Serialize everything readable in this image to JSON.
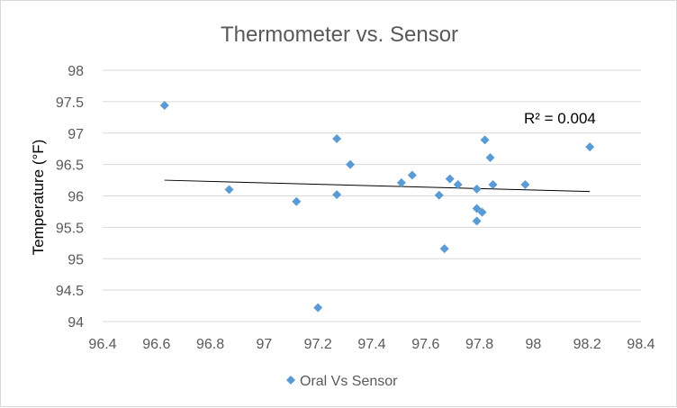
{
  "chart_data": {
    "type": "scatter",
    "title": "Thermometer vs. Sensor",
    "xlabel": "",
    "ylabel": "Temperature (°F)",
    "xlim": [
      96.4,
      98.4
    ],
    "ylim": [
      94,
      98
    ],
    "x_ticks": [
      "96.4",
      "96.6",
      "96.8",
      "97",
      "97.2",
      "97.4",
      "97.6",
      "97.8",
      "98",
      "98.2",
      "98.4"
    ],
    "y_ticks": [
      "94",
      "94.5",
      "95",
      "95.5",
      "96",
      "96.5",
      "97",
      "97.5",
      "98"
    ],
    "grid": "horizontal",
    "legend_position": "bottom",
    "series": [
      {
        "name": "Oral Vs Sensor",
        "color": "#5b9bd5",
        "marker": "diamond",
        "points": [
          {
            "x": 96.63,
            "y": 97.44
          },
          {
            "x": 96.87,
            "y": 96.1
          },
          {
            "x": 97.12,
            "y": 95.91
          },
          {
            "x": 97.2,
            "y": 94.22
          },
          {
            "x": 97.27,
            "y": 96.91
          },
          {
            "x": 97.27,
            "y": 96.02
          },
          {
            "x": 97.32,
            "y": 96.5
          },
          {
            "x": 97.51,
            "y": 96.21
          },
          {
            "x": 97.55,
            "y": 96.33
          },
          {
            "x": 97.65,
            "y": 96.01
          },
          {
            "x": 97.67,
            "y": 95.16
          },
          {
            "x": 97.69,
            "y": 96.27
          },
          {
            "x": 97.72,
            "y": 96.18
          },
          {
            "x": 97.79,
            "y": 96.11
          },
          {
            "x": 97.79,
            "y": 95.8
          },
          {
            "x": 97.79,
            "y": 95.6
          },
          {
            "x": 97.81,
            "y": 95.74
          },
          {
            "x": 97.82,
            "y": 96.89
          },
          {
            "x": 97.84,
            "y": 96.61
          },
          {
            "x": 97.85,
            "y": 96.18
          },
          {
            "x": 97.97,
            "y": 96.18
          },
          {
            "x": 98.21,
            "y": 96.78
          }
        ]
      }
    ],
    "trendline": {
      "type": "linear",
      "color": "#000000",
      "x_start": 96.63,
      "y_start": 96.25,
      "x_end": 98.21,
      "y_end": 96.07,
      "label": "R² = 0.004"
    }
  }
}
